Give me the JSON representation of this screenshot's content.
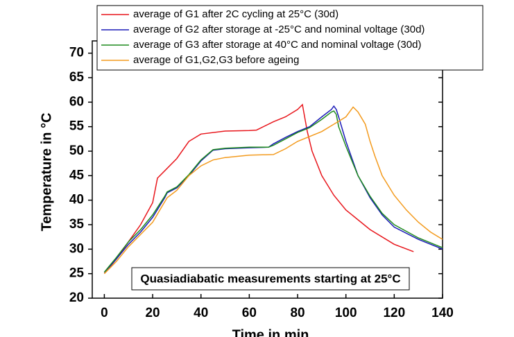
{
  "chart_data": {
    "type": "line",
    "xlabel": "Time in min",
    "ylabel": "Temperature in °C",
    "annotation": "Quasiadiabatic measurements starting at 25°C",
    "xlim": [
      -5,
      140
    ],
    "xticks": [
      0,
      20,
      40,
      60,
      80,
      100,
      120,
      140
    ],
    "ylim": [
      20,
      72.5
    ],
    "yticks": [
      20,
      25,
      30,
      35,
      40,
      45,
      50,
      55,
      60,
      65,
      70
    ],
    "legend": "top",
    "series": [
      {
        "name": "average of G1 after 2C cycling at 25°C (30d)",
        "color": "#e8151b",
        "x": [
          0,
          5,
          10,
          15,
          20,
          22,
          25,
          30,
          35,
          40,
          50,
          60,
          63,
          70,
          75,
          80,
          82,
          84,
          86,
          90,
          95,
          100,
          110,
          120,
          128
        ],
        "values": [
          25,
          28,
          31.5,
          35,
          39.5,
          44.5,
          46,
          48.5,
          52,
          53.5,
          54.1,
          54.2,
          54.3,
          56,
          57,
          58.5,
          59.5,
          54,
          50,
          45,
          41,
          38,
          34,
          31,
          29.5
        ]
      },
      {
        "name": "average of G2 after storage at -25°C and nominal voltage (30d)",
        "color": "#1a1ab8",
        "x": [
          0,
          5,
          10,
          15,
          20,
          25,
          26,
          30,
          35,
          40,
          45,
          50,
          60,
          68,
          70,
          75,
          80,
          85,
          90,
          94,
          95,
          96,
          97,
          100,
          105,
          110,
          115,
          120,
          130,
          140
        ],
        "values": [
          25.2,
          28,
          31,
          33.5,
          36.5,
          40.5,
          41.5,
          42.5,
          45,
          48,
          50.2,
          50.5,
          50.7,
          50.8,
          51.5,
          52.8,
          54,
          55,
          57,
          58.5,
          59.2,
          58.5,
          57,
          52,
          45,
          40.5,
          37,
          34.5,
          32,
          30
        ]
      },
      {
        "name": "average of G3 after storage at 40°C and nominal voltage (30d)",
        "color": "#1d8a1d",
        "x": [
          0,
          5,
          10,
          15,
          20,
          25,
          26,
          30,
          35,
          40,
          45,
          50,
          60,
          68,
          70,
          75,
          80,
          85,
          90,
          94,
          95,
          96,
          97,
          100,
          105,
          110,
          115,
          120,
          130,
          140
        ],
        "values": [
          25.3,
          28.3,
          31.5,
          34,
          37,
          40.8,
          41.7,
          42.7,
          45.2,
          48.2,
          50.3,
          50.6,
          50.8,
          50.8,
          51.2,
          52.5,
          53.8,
          54.8,
          56.5,
          58,
          58.2,
          57.5,
          55,
          51,
          45,
          40.8,
          37.3,
          35,
          32.3,
          30.3
        ]
      },
      {
        "name": "average of G1,G2,G3 before ageing",
        "color": "#f39a1c",
        "x": [
          0,
          5,
          10,
          15,
          20,
          23,
          26,
          30,
          35,
          40,
          45,
          50,
          60,
          70,
          75,
          80,
          90,
          95,
          100,
          103,
          105,
          108,
          110,
          112,
          115,
          120,
          125,
          130,
          135,
          140
        ],
        "values": [
          25,
          27.5,
          30.5,
          33,
          35.5,
          38,
          40.5,
          42,
          45,
          47,
          48.2,
          48.7,
          49.2,
          49.3,
          50.5,
          52,
          54,
          55.5,
          57,
          59,
          58,
          55.5,
          52,
          49,
          45,
          41,
          38,
          35.5,
          33.5,
          32
        ]
      }
    ]
  }
}
